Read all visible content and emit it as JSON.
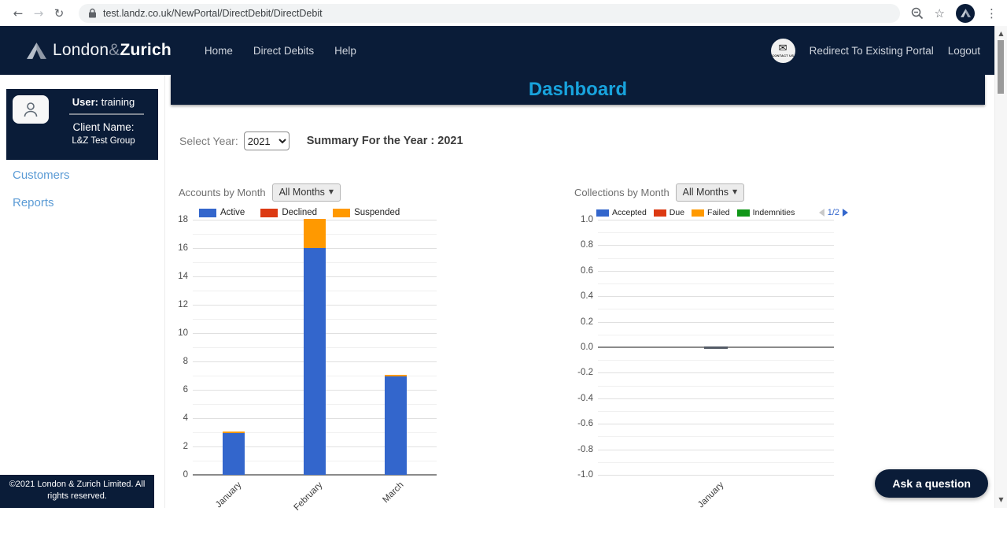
{
  "browser": {
    "url": "test.landz.co.uk/NewPortal/DirectDebit/DirectDebit"
  },
  "topnav": {
    "brand_part1": "London",
    "brand_amp": "&",
    "brand_part2": "Zurich",
    "links": [
      {
        "label": "Home"
      },
      {
        "label": "Direct Debits"
      },
      {
        "label": "Help"
      }
    ],
    "contact_badge": "CONTACT US",
    "redirect_label": "Redirect To Existing Portal",
    "logout_label": "Logout"
  },
  "sidebar": {
    "user_label": "User:",
    "user_value": "training",
    "client_label": "Client Name:",
    "client_value": "L&Z Test Group",
    "items": [
      {
        "label": "Customers"
      },
      {
        "label": "Reports"
      }
    ],
    "footer": "©2021 London & Zurich Limited. All rights reserved."
  },
  "page": {
    "title": "Dashboard",
    "select_year_label": "Select Year:",
    "select_year_value": "2021",
    "summary": "Summary For the Year : 2021",
    "ask_button": "Ask a question"
  },
  "colors": {
    "navy": "#0a1c38",
    "title_cyan": "#18a3dd",
    "sidebar_link_blue": "#5b9bd5",
    "series_blue": "#3366cc",
    "series_red": "#dc3912",
    "series_orange": "#ff9900",
    "series_green": "#109618"
  },
  "chart_data": [
    {
      "type": "bar",
      "stacked": true,
      "title": "Accounts by Month",
      "filter_label": "All Months",
      "categories": [
        "January",
        "February",
        "March"
      ],
      "series": [
        {
          "name": "Active",
          "color": "#3366cc",
          "values": [
            3,
            16,
            7
          ]
        },
        {
          "name": "Declined",
          "color": "#dc3912",
          "values": [
            0,
            0,
            0
          ]
        },
        {
          "name": "Suspended",
          "color": "#ff9900",
          "values": [
            0,
            2,
            0
          ]
        }
      ],
      "ylim": [
        0,
        18
      ],
      "ytick_step": 2,
      "minor_grid_step": 1,
      "ytick_decimals": 0,
      "legend_position": "top",
      "grid": true,
      "top_sliver_color": "#ff9900"
    },
    {
      "type": "bar",
      "stacked": true,
      "title": "Collections by Month",
      "filter_label": "All Months",
      "categories": [
        "January"
      ],
      "series": [
        {
          "name": "Accepted",
          "color": "#3366cc",
          "values": [
            0
          ]
        },
        {
          "name": "Due",
          "color": "#dc3912",
          "values": [
            0
          ]
        },
        {
          "name": "Failed",
          "color": "#ff9900",
          "values": [
            0
          ]
        },
        {
          "name": "Indemnities",
          "color": "#109618",
          "values": [
            0
          ]
        }
      ],
      "ylim": [
        -1.0,
        1.0
      ],
      "ytick_step": 0.2,
      "minor_grid_step": 0.1,
      "ytick_decimals": 1,
      "legend_position": "top",
      "legend_pagination": "1/2",
      "grid": true,
      "zero_marker_color": "#545b66"
    }
  ]
}
